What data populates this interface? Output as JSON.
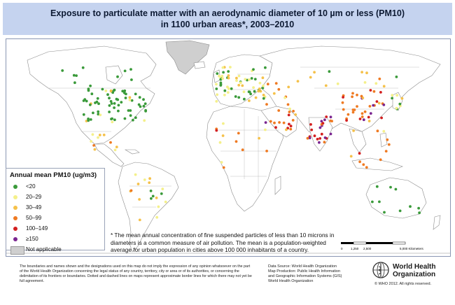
{
  "title": {
    "line1": "Exposure to particulate matter with an aerodynamic diameter of 10 µm or less (PM10)",
    "line2": "in 1100 urban areas*, 2003–2010"
  },
  "legend": {
    "title": "Annual mean PM10 (ug/m3)",
    "items": [
      {
        "label": "<20",
        "color": "#3a9a3a"
      },
      {
        "label": "20–29",
        "color": "#f4f08a"
      },
      {
        "label": "30–49",
        "color": "#f5c14a"
      },
      {
        "label": "50–99",
        "color": "#ef7a22"
      },
      {
        "label": "100–149",
        "color": "#d31f1f"
      },
      {
        "label": "≥150",
        "color": "#7a2590"
      }
    ],
    "not_applicable": "Not applicable"
  },
  "footnote": "* The mean annual concentration of fine suspended particles of less than 10 microns in diameters is a common measure of air pollution. The mean is a population-weighted average for urban population in cities above 100 000 inhabitants of a country.",
  "scale_bar": {
    "ticks": [
      "0",
      "1,250",
      "2,500",
      "5,000 Kilometers"
    ]
  },
  "disclaimer": "The boundaries and names shown and the designations used on this map do not imply the expression of any opinion whatsoever on the part of the World Health Organization concerning the legal status of any country, territory, city or area or of its authorities, or concerning the delimitation of its frontiers or boundaries. Dotted and dashed lines on maps represent approximate border lines for which there may not yet be full agreement.",
  "source": {
    "line1": "Data Source: World Health Organization",
    "line2": "Map Production: Public Health Information",
    "line3": "and Geographic Information Systems (GIS)",
    "line4": "World Health Organization"
  },
  "copyright": "© WHO 2012. All rights reserved.",
  "organization": {
    "line1": "World Health",
    "line2": "Organization"
  },
  "colors": {
    "land": "#ffffff",
    "border": "#8c8c8c",
    "not_applicable": "#cfcfcf",
    "title_band": "#c5d3ef"
  }
}
